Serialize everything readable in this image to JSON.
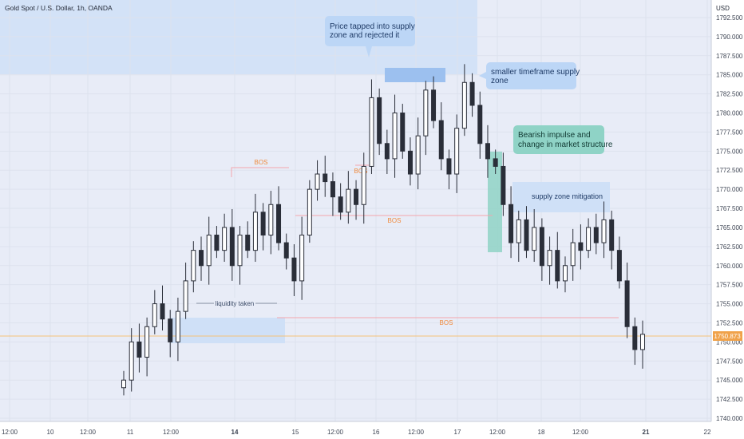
{
  "header": {
    "symbol_title": "Gold Spot / U.S. Dollar, 1h, OANDA",
    "currency": "USD"
  },
  "colors": {
    "background": "#e8ecf7",
    "candle": "#2a2e39",
    "bos_line": "#f3a6ad",
    "bos_text": "#f08a3c",
    "zone": "#cfe0f7",
    "callout": "#bcd6f6",
    "teal": "#8fd3c6",
    "price_line": "#f6c27a",
    "price_tag": "#f0a24a"
  },
  "price_axis": {
    "ticks": [
      "1792.500",
      "1790.000",
      "1787.500",
      "1785.000",
      "1782.500",
      "1780.000",
      "1777.500",
      "1775.000",
      "1772.500",
      "1770.000",
      "1767.500",
      "1765.000",
      "1762.500",
      "1760.000",
      "1757.500",
      "1755.000",
      "1752.500",
      "1750.000",
      "1747.500",
      "1745.000",
      "1742.500",
      "1740.000"
    ],
    "current_price": "1750.873"
  },
  "time_axis": {
    "labels": [
      "12:00",
      "10",
      "12:00",
      "11",
      "12:00",
      "14",
      "15",
      "12:00",
      "16",
      "12:00",
      "17",
      "12:00",
      "18",
      "12:00",
      "21",
      "22"
    ]
  },
  "annotations": {
    "supply_callout": "Price tapped into supply zone and rejected it",
    "smaller_tf": "smaller timeframe supply zone",
    "bearish": "Bearish impulse and change in market structure",
    "mitigation": "supply zone mitigation",
    "liquidity": "liquidity taken",
    "bos": "BOS"
  },
  "chart_data": {
    "type": "candlestick",
    "title": "Gold Spot / U.S. Dollar, 1h, OANDA",
    "ylabel": "USD",
    "ylim": [
      1739.5,
      1794.5
    ],
    "current_price": 1750.873,
    "close_path": [
      1745,
      1750,
      1748,
      1752,
      1755,
      1753,
      1750,
      1754,
      1758,
      1762,
      1760,
      1764,
      1762,
      1765,
      1760,
      1764,
      1762,
      1767,
      1764,
      1768,
      1763,
      1761,
      1758,
      1764,
      1770,
      1772,
      1771,
      1769,
      1767,
      1770,
      1768,
      1773,
      1782,
      1776,
      1774,
      1780,
      1775,
      1772,
      1777,
      1783,
      1779,
      1774,
      1772,
      1778,
      1784,
      1781,
      1776,
      1774,
      1773,
      1768,
      1763,
      1766,
      1762,
      1765,
      1760,
      1762,
      1758,
      1760,
      1763,
      1762,
      1765,
      1763,
      1766,
      1762,
      1758,
      1752,
      1749,
      1751
    ],
    "levels": [
      {
        "label": "BOS",
        "price": 1772.3
      },
      {
        "label": "BOS",
        "price": 1767.0
      },
      {
        "label": "BOS",
        "price": 1753.2
      },
      {
        "label": "BOS",
        "price": 1773.0
      }
    ]
  }
}
